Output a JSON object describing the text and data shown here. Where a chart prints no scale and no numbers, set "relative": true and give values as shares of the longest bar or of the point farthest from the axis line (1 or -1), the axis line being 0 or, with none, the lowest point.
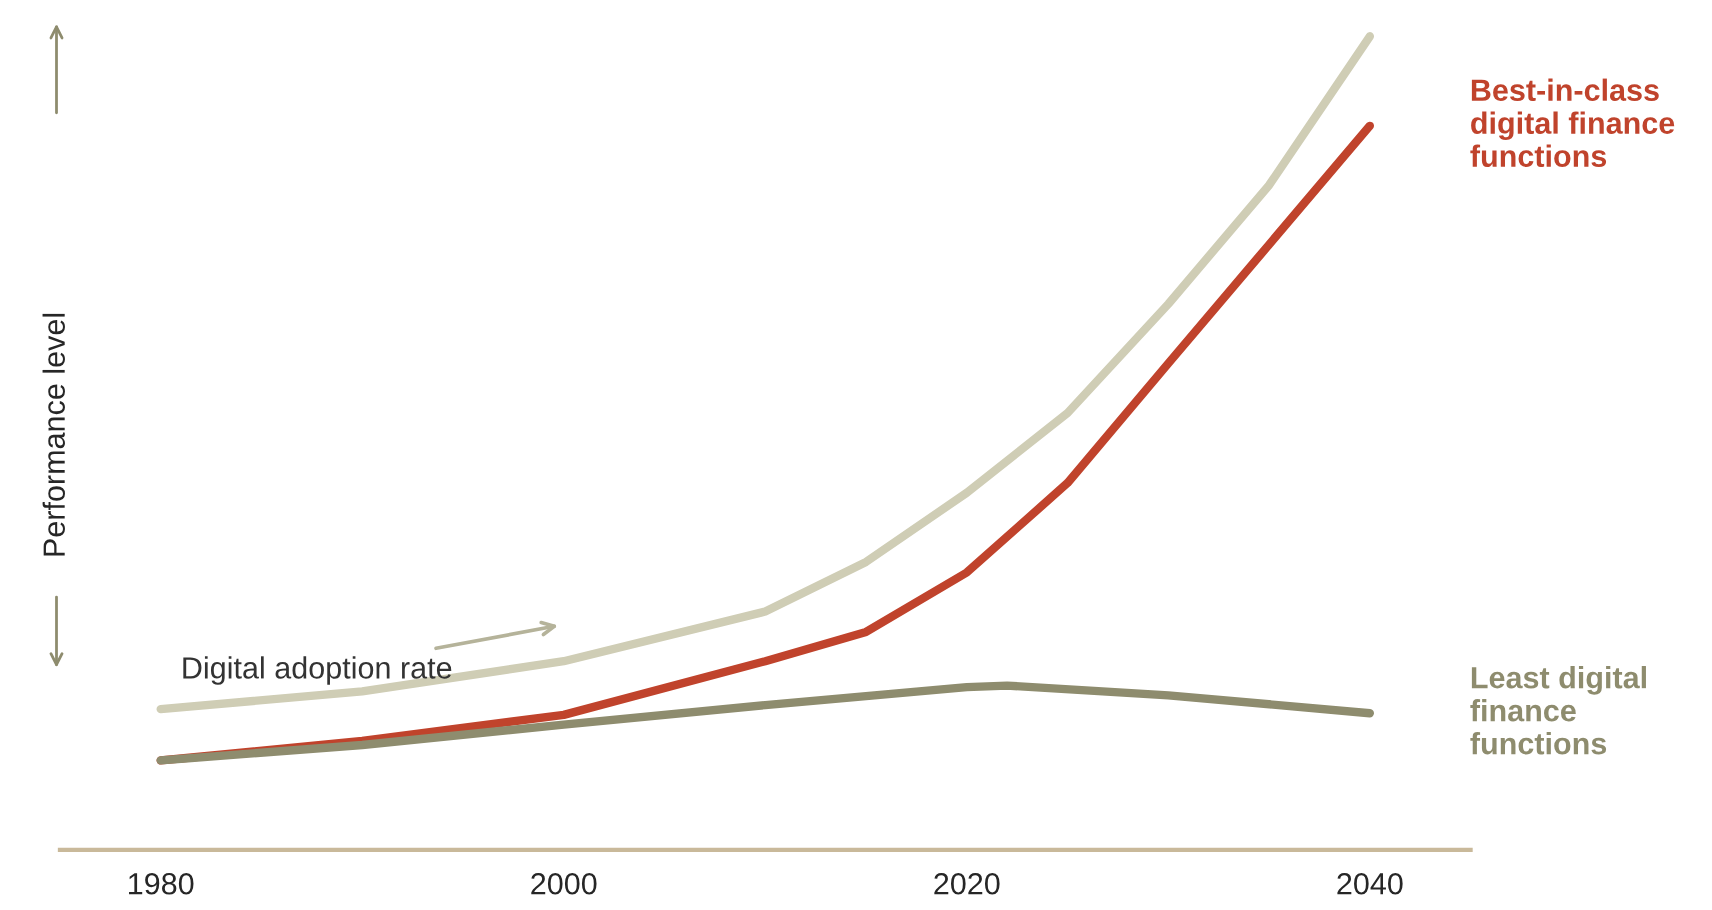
{
  "chart_data": {
    "type": "line",
    "relative": true,
    "ylabel": "Performance level",
    "xlim": [
      1975,
      2045
    ],
    "xticks": [
      1980,
      2000,
      2020,
      2040
    ],
    "tick_labels": "x",
    "grid": false,
    "legend": false,
    "marker": "none",
    "line_style": "solid",
    "series": [
      {
        "name": "Digital adoption rate",
        "color": "#cfcdb5",
        "x": [
          1980,
          1990,
          2000,
          2010,
          2015,
          2020,
          2025,
          2030,
          2035,
          2040
        ],
        "values": [
          0.173,
          0.195,
          0.232,
          0.293,
          0.354,
          0.439,
          0.537,
          0.671,
          0.817,
          1.0
        ]
      },
      {
        "name": "Best-in-class digital finance functions",
        "color": "#c0432c",
        "x": [
          1980,
          1990,
          2000,
          2010,
          2015,
          2020,
          2025,
          2030,
          2035,
          2040
        ],
        "values": [
          0.11,
          0.134,
          0.166,
          0.232,
          0.268,
          0.341,
          0.451,
          0.598,
          0.744,
          0.89
        ]
      },
      {
        "name": "Least digital finance functions",
        "color": "#8e8c6e",
        "x": [
          1980,
          1990,
          2000,
          2010,
          2020,
          2022,
          2030,
          2040
        ],
        "values": [
          0.11,
          0.129,
          0.154,
          0.178,
          0.2,
          0.202,
          0.19,
          0.168
        ]
      }
    ]
  }
}
